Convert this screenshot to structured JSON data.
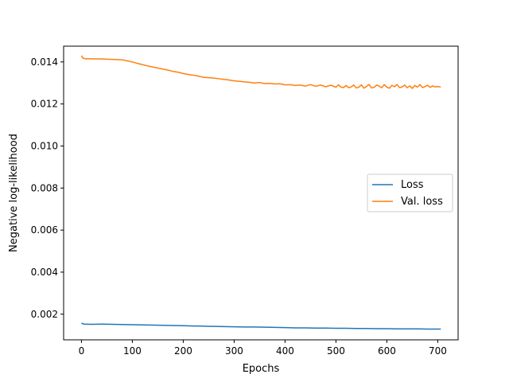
{
  "chart_data": {
    "type": "line",
    "title": "",
    "xlabel": "Epochs",
    "ylabel": "Negative log-likelihood",
    "xlim": [
      -35,
      740
    ],
    "ylim": [
      0.00078,
      0.01475
    ],
    "xticks": [
      0,
      100,
      200,
      300,
      400,
      500,
      600,
      700
    ],
    "xtick_labels": [
      "0",
      "100",
      "200",
      "300",
      "400",
      "500",
      "600",
      "700"
    ],
    "yticks": [
      0.002,
      0.004,
      0.006,
      0.008,
      0.01,
      0.012,
      0.014
    ],
    "ytick_labels": [
      "0.002",
      "0.004",
      "0.006",
      "0.008",
      "0.010",
      "0.012",
      "0.014"
    ],
    "grid": false,
    "legend_position": "center-right",
    "series": [
      {
        "name": "Loss",
        "color": "#1f77b4",
        "x": [
          0,
          5,
          20,
          40,
          60,
          80,
          100,
          120,
          140,
          160,
          180,
          200,
          220,
          240,
          260,
          280,
          300,
          320,
          340,
          360,
          380,
          400,
          420,
          440,
          460,
          480,
          500,
          520,
          540,
          560,
          580,
          600,
          620,
          640,
          660,
          680,
          700,
          706
        ],
        "y": [
          0.00157,
          0.00153,
          0.00152,
          0.00153,
          0.00152,
          0.00151,
          0.0015,
          0.00149,
          0.00148,
          0.00147,
          0.00146,
          0.00145,
          0.00144,
          0.00143,
          0.00142,
          0.00141,
          0.0014,
          0.00139,
          0.00139,
          0.00138,
          0.00137,
          0.00136,
          0.00135,
          0.00135,
          0.00134,
          0.00134,
          0.00133,
          0.00133,
          0.00132,
          0.00132,
          0.00131,
          0.00131,
          0.0013,
          0.0013,
          0.0013,
          0.00129,
          0.00129,
          0.00129
        ]
      },
      {
        "name": "Val. loss",
        "color": "#ff7f0e",
        "x": [
          0,
          3,
          8,
          20,
          40,
          60,
          80,
          90,
          100,
          110,
          120,
          130,
          140,
          150,
          160,
          170,
          180,
          190,
          200,
          210,
          220,
          230,
          240,
          250,
          260,
          270,
          280,
          290,
          300,
          310,
          320,
          330,
          340,
          350,
          360,
          370,
          380,
          390,
          400,
          410,
          420,
          430,
          440,
          450,
          460,
          470,
          480,
          490,
          500,
          505,
          510,
          515,
          520,
          525,
          530,
          535,
          540,
          545,
          550,
          555,
          560,
          565,
          570,
          575,
          580,
          585,
          590,
          595,
          600,
          605,
          610,
          615,
          620,
          625,
          630,
          635,
          640,
          645,
          650,
          655,
          660,
          665,
          670,
          675,
          680,
          685,
          690,
          695,
          700,
          706
        ],
        "y": [
          0.0143,
          0.01418,
          0.01415,
          0.01415,
          0.01414,
          0.01412,
          0.0141,
          0.01405,
          0.014,
          0.01393,
          0.01387,
          0.01381,
          0.01376,
          0.01371,
          0.01366,
          0.01361,
          0.01355,
          0.01351,
          0.01345,
          0.0134,
          0.01337,
          0.01332,
          0.01327,
          0.01325,
          0.01323,
          0.0132,
          0.01317,
          0.01314,
          0.0131,
          0.01308,
          0.01305,
          0.01303,
          0.013,
          0.01302,
          0.01297,
          0.01298,
          0.01295,
          0.01296,
          0.01291,
          0.01292,
          0.01288,
          0.0129,
          0.01285,
          0.01292,
          0.01284,
          0.0129,
          0.01282,
          0.01289,
          0.0128,
          0.01291,
          0.0128,
          0.01278,
          0.01288,
          0.01277,
          0.01281,
          0.0129,
          0.01276,
          0.0128,
          0.01291,
          0.01275,
          0.01283,
          0.01293,
          0.01276,
          0.01279,
          0.0129,
          0.01285,
          0.01277,
          0.01292,
          0.0128,
          0.01275,
          0.01289,
          0.01282,
          0.01293,
          0.01278,
          0.01281,
          0.0129,
          0.01277,
          0.01286,
          0.01274,
          0.01288,
          0.0128,
          0.01292,
          0.01278,
          0.01283,
          0.01289,
          0.01279,
          0.01286,
          0.01281,
          0.01283,
          0.01281
        ]
      }
    ]
  }
}
